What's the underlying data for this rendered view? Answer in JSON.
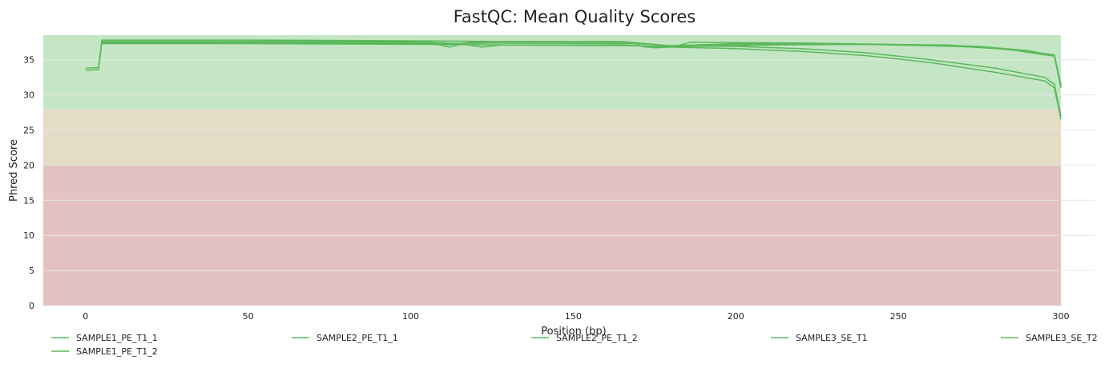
{
  "chart_data": {
    "type": "line",
    "title": "FastQC: Mean Quality Scores",
    "xlabel": "Position (bp)",
    "ylabel": "Phred Score",
    "xlim": [
      -13,
      300
    ],
    "ylim": [
      0,
      38.5
    ],
    "xticks": [
      "0",
      "50",
      "100",
      "150",
      "200",
      "250",
      "300"
    ],
    "yticks": [
      "0",
      "5",
      "10",
      "15",
      "20",
      "25",
      "30",
      "35"
    ],
    "grid": true,
    "legend_position": "bottom",
    "bands": [
      {
        "from": 0,
        "to": 20,
        "color": "#e4c2c2"
      },
      {
        "from": 20,
        "to": 28,
        "color": "#e4dcc4"
      },
      {
        "from": 28,
        "to": 38.5,
        "color": "#c4e6c4"
      }
    ],
    "line_color": "#5cb85c",
    "series": [
      {
        "name": "SAMPLE1_PE_T1_1",
        "points": [
          [
            0,
            33.8
          ],
          [
            4,
            33.9
          ],
          [
            5,
            37.8
          ],
          [
            50,
            37.8
          ],
          [
            100,
            37.7
          ],
          [
            130,
            37.6
          ],
          [
            165,
            37.6
          ],
          [
            180,
            37.0
          ],
          [
            200,
            36.9
          ],
          [
            220,
            36.6
          ],
          [
            240,
            36.0
          ],
          [
            260,
            35.0
          ],
          [
            280,
            33.8
          ],
          [
            295,
            32.5
          ],
          [
            298,
            31.5
          ],
          [
            300,
            27.0
          ]
        ]
      },
      {
        "name": "SAMPLE1_PE_T1_2",
        "points": [
          [
            0,
            33.5
          ],
          [
            4,
            33.6
          ],
          [
            5,
            37.4
          ],
          [
            50,
            37.3
          ],
          [
            100,
            37.2
          ],
          [
            130,
            37.1
          ],
          [
            165,
            37.1
          ],
          [
            180,
            36.8
          ],
          [
            200,
            36.6
          ],
          [
            220,
            36.2
          ],
          [
            240,
            35.6
          ],
          [
            260,
            34.6
          ],
          [
            280,
            33.2
          ],
          [
            295,
            32.0
          ],
          [
            298,
            31.0
          ],
          [
            300,
            26.5
          ]
        ]
      },
      {
        "name": "SAMPLE2_PE_T1_1",
        "points": [
          [
            5,
            37.6
          ],
          [
            100,
            37.6
          ],
          [
            106,
            37.4
          ],
          [
            112,
            36.8
          ],
          [
            118,
            37.5
          ],
          [
            125,
            37.6
          ],
          [
            168,
            37.5
          ],
          [
            172,
            36.8
          ],
          [
            182,
            37.0
          ],
          [
            186,
            37.5
          ],
          [
            220,
            37.4
          ],
          [
            260,
            37.1
          ],
          [
            275,
            36.9
          ],
          [
            290,
            36.3
          ],
          [
            298,
            35.6
          ],
          [
            300,
            31.5
          ]
        ]
      },
      {
        "name": "SAMPLE2_PE_T1_2",
        "points": [
          [
            5,
            37.3
          ],
          [
            100,
            37.3
          ],
          [
            108,
            37.2
          ],
          [
            115,
            37.3
          ],
          [
            122,
            36.8
          ],
          [
            128,
            37.1
          ],
          [
            170,
            37.0
          ],
          [
            175,
            36.7
          ],
          [
            185,
            36.9
          ],
          [
            210,
            37.1
          ],
          [
            240,
            37.2
          ],
          [
            260,
            37.0
          ],
          [
            275,
            36.8
          ],
          [
            285,
            36.4
          ],
          [
            298,
            35.5
          ],
          [
            300,
            31.0
          ]
        ]
      },
      {
        "name": "SAMPLE3_SE_T1",
        "points": [
          [
            5,
            37.5
          ],
          [
            105,
            37.4
          ],
          [
            110,
            37.3
          ],
          [
            120,
            37.4
          ],
          [
            170,
            37.3
          ],
          [
            178,
            37.0
          ],
          [
            200,
            37.2
          ],
          [
            240,
            37.2
          ],
          [
            265,
            37.0
          ],
          [
            285,
            36.5
          ],
          [
            298,
            35.7
          ],
          [
            300,
            31.2
          ]
        ]
      },
      {
        "name": "SAMPLE3_SE_T2",
        "points": [
          [
            5,
            37.5
          ],
          [
            105,
            37.5
          ],
          [
            115,
            37.3
          ],
          [
            125,
            37.4
          ],
          [
            170,
            37.3
          ],
          [
            180,
            37.0
          ],
          [
            200,
            37.3
          ],
          [
            240,
            37.2
          ],
          [
            265,
            37.1
          ],
          [
            285,
            36.4
          ],
          [
            298,
            35.6
          ],
          [
            300,
            31.3
          ]
        ]
      }
    ]
  }
}
